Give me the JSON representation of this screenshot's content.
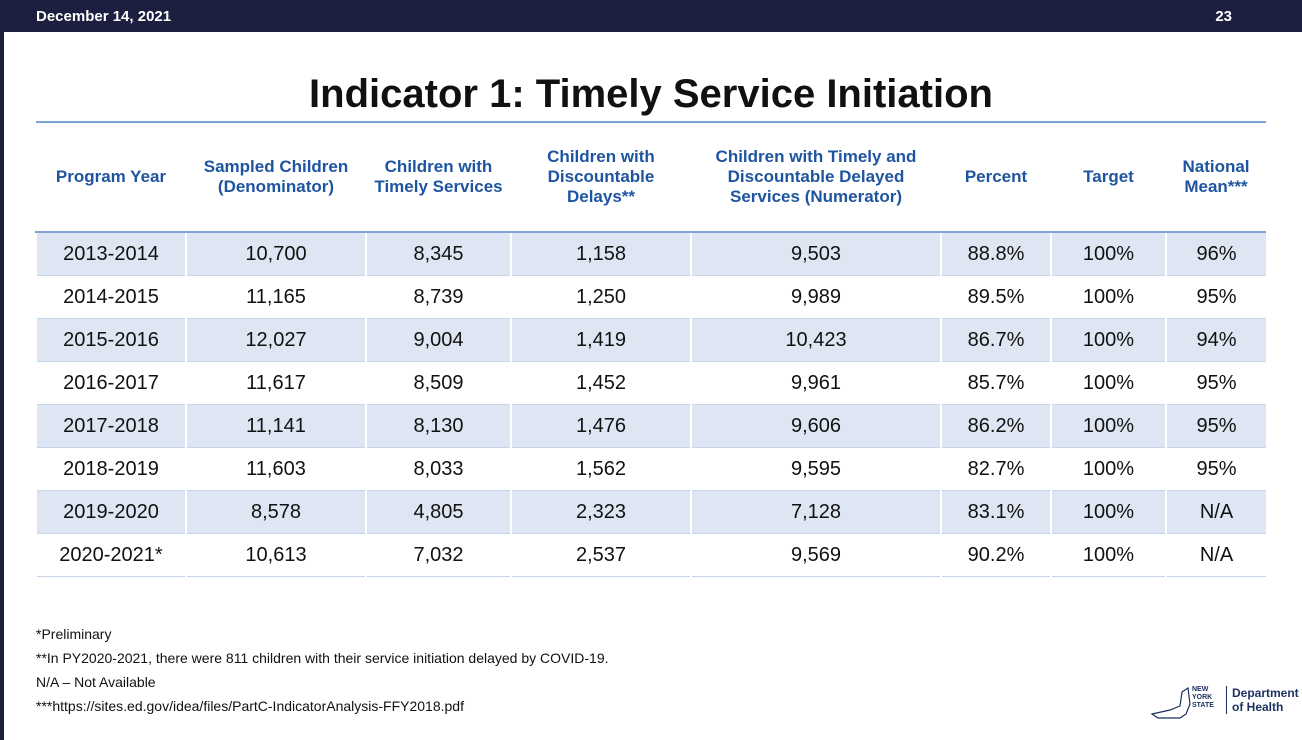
{
  "header": {
    "date": "December 14, 2021",
    "page": "23"
  },
  "title": "Indicator 1: Timely Service Initiation",
  "table": {
    "columns": [
      "Program Year",
      "Sampled Children (Denominator)",
      "Children with Timely Services",
      "Children with Discountable Delays**",
      "Children with Timely and Discountable Delayed Services (Numerator)",
      "Percent",
      "Target",
      "National Mean***"
    ],
    "rows": [
      [
        "2013-2014",
        "10,700",
        "8,345",
        "1,158",
        "9,503",
        "88.8%",
        "100%",
        "96%"
      ],
      [
        "2014-2015",
        "11,165",
        "8,739",
        "1,250",
        "9,989",
        "89.5%",
        "100%",
        "95%"
      ],
      [
        "2015-2016",
        "12,027",
        "9,004",
        "1,419",
        "10,423",
        "86.7%",
        "100%",
        "94%"
      ],
      [
        "2016-2017",
        "11,617",
        "8,509",
        "1,452",
        "9,961",
        "85.7%",
        "100%",
        "95%"
      ],
      [
        "2017-2018",
        "11,141",
        "8,130",
        "1,476",
        "9,606",
        "86.2%",
        "100%",
        "95%"
      ],
      [
        "2018-2019",
        "11,603",
        "8,033",
        "1,562",
        "9,595",
        "82.7%",
        "100%",
        "95%"
      ],
      [
        "2019-2020",
        "8,578",
        "4,805",
        "2,323",
        "7,128",
        "83.1%",
        "100%",
        "N/A"
      ],
      [
        "2020-2021*",
        "10,613",
        "7,032",
        "2,537",
        "9,569",
        "90.2%",
        "100%",
        "N/A"
      ]
    ]
  },
  "footnotes": [
    "*Preliminary",
    "**In PY2020-2021, there were 811 children with their service initiation delayed by COVID-19.",
    "N/A – Not Available",
    "***https://sites.ed.gov/idea/files/PartC-IndicatorAnalysis-FFY2018.pdf"
  ],
  "logo": {
    "state": "NEW YORK STATE",
    "department": "Department of Health"
  }
}
